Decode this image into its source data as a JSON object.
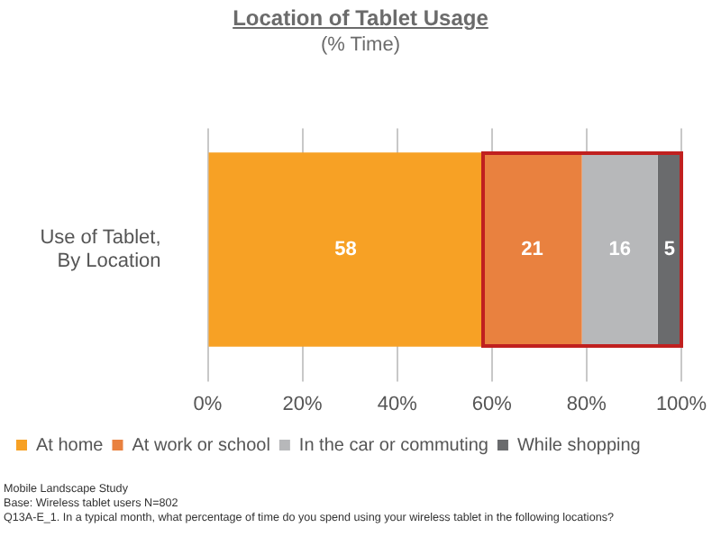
{
  "chart_data": {
    "type": "bar",
    "orientation": "horizontal",
    "stacked": true,
    "title": "Location of Tablet Usage",
    "subtitle": "(% Time)",
    "categories": [
      "Use of Tablet, By Location"
    ],
    "series": [
      {
        "name": "At home",
        "color": "#f7a125",
        "values": [
          58
        ]
      },
      {
        "name": "At work or school",
        "color": "#e9813f",
        "values": [
          21
        ]
      },
      {
        "name": "In the car or commuting",
        "color": "#b7b8ba",
        "values": [
          16
        ]
      },
      {
        "name": "While shopping",
        "color": "#6a6b6d",
        "values": [
          5
        ]
      }
    ],
    "xlim": [
      0,
      100
    ],
    "xticks": [
      {
        "value": 0,
        "label": "0%"
      },
      {
        "value": 20,
        "label": "20%"
      },
      {
        "value": 40,
        "label": "40%"
      },
      {
        "value": 60,
        "label": "60%"
      },
      {
        "value": 80,
        "label": "80%"
      },
      {
        "value": 100,
        "label": "100%"
      }
    ],
    "grid": "x",
    "legend": "bottom",
    "data_labels": true,
    "annotations": [
      "Mobile Landscape Study",
      "Base: Wireless tablet users N=802",
      "Q13A-E_1. In a typical month, what percentage of time do you spend using your wireless tablet in the following locations?"
    ]
  }
}
